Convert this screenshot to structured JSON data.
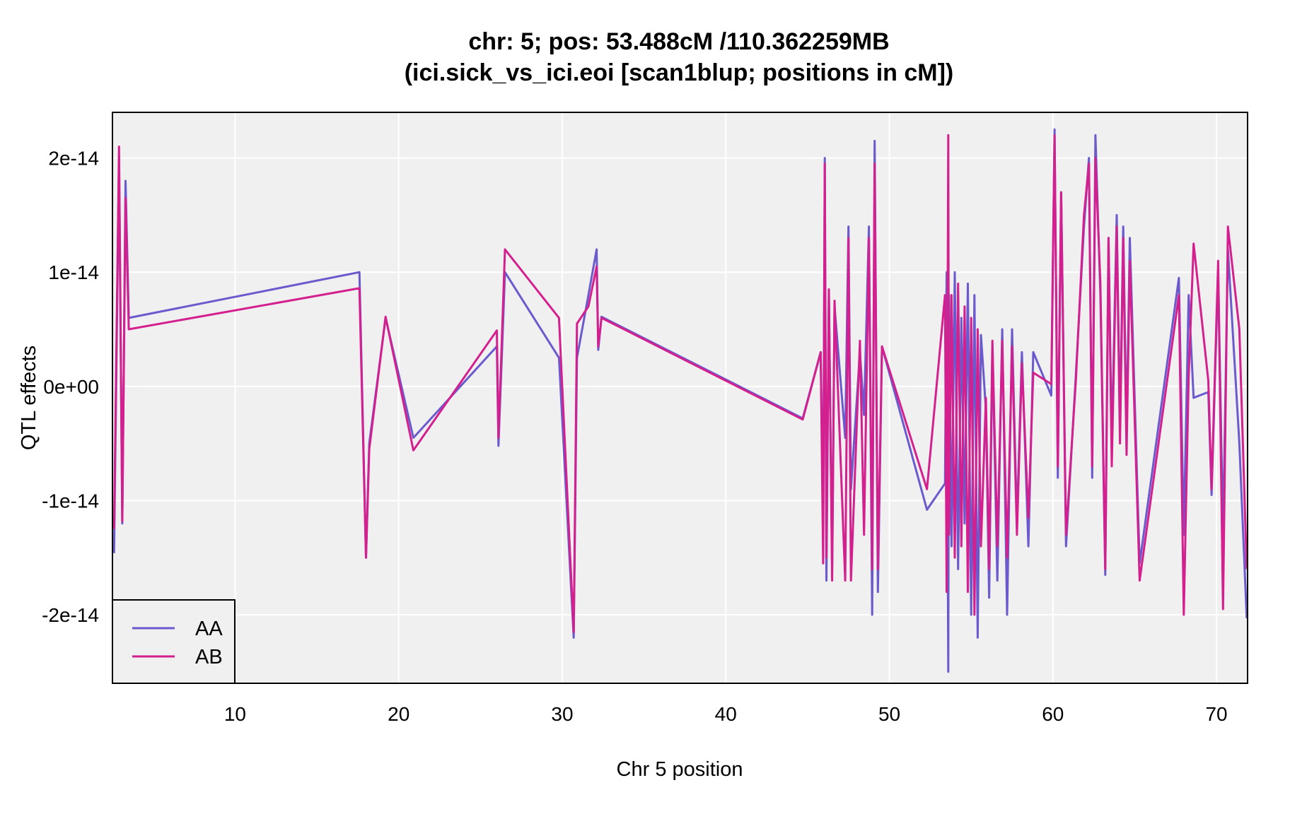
{
  "chart_data": {
    "type": "line",
    "title_line1": "chr: 5; pos: 53.488cM /110.362259MB",
    "title_line2": "(ici.sick_vs_ici.eoi [scan1blup; positions in cM])",
    "xlabel": "Chr 5 position",
    "ylabel": "QTL effects",
    "xlim": [
      2.5,
      71.9
    ],
    "ylim": [
      -2.6e-14,
      2.4e-14
    ],
    "x_ticks": [
      10,
      20,
      30,
      40,
      50,
      60,
      70
    ],
    "x_tick_labels": [
      "10",
      "20",
      "30",
      "40",
      "50",
      "60",
      "70"
    ],
    "y_ticks": [
      2e-14,
      1e-14,
      0,
      -1e-14,
      -2e-14
    ],
    "y_tick_labels": [
      "2e-14",
      "1e-14",
      "0e+00",
      "-1e-14",
      "-2e-14"
    ],
    "grid": true,
    "legend_position": "bottom-left",
    "colors": {
      "AA": "#6a5acd",
      "AB": "#d4208e",
      "panel": "#f0f0f0",
      "grid": "#ffffff"
    },
    "x": [
      2.6,
      2.9,
      3.1,
      3.3,
      3.5,
      17.6,
      18.0,
      18.2,
      19.2,
      20.9,
      26.0,
      26.1,
      26.5,
      29.8,
      30.7,
      30.9,
      31.6,
      32.1,
      32.2,
      32.4,
      44.7,
      45.8,
      45.95,
      46.05,
      46.15,
      46.3,
      46.5,
      46.65,
      47.3,
      47.5,
      47.65,
      48.2,
      48.45,
      48.75,
      48.95,
      49.1,
      49.3,
      49.55,
      52.3,
      53.4,
      53.5,
      53.6,
      53.65,
      53.8,
      54.0,
      54.2,
      54.4,
      54.6,
      54.8,
      55.0,
      55.2,
      55.4,
      55.6,
      55.9,
      56.1,
      56.3,
      56.6,
      56.9,
      57.2,
      57.5,
      57.8,
      58.1,
      58.5,
      58.8,
      59.9,
      60.1,
      60.3,
      60.5,
      60.8,
      61.4,
      61.9,
      62.2,
      62.4,
      62.6,
      62.9,
      63.2,
      63.4,
      63.6,
      63.9,
      64.1,
      64.3,
      64.5,
      64.7,
      65.3,
      67.7,
      68.0,
      68.3,
      68.6,
      69.5,
      69.7,
      70.1,
      70.4,
      70.7,
      71.4,
      71.85
    ],
    "series": [
      {
        "name": "AA",
        "values": [
          -1.46e-14,
          2e-14,
          -1.2e-14,
          1.8e-14,
          6e-15,
          1e-14,
          -1.5e-14,
          -5e-15,
          6e-15,
          -4.5e-15,
          3.5e-15,
          -5.2e-15,
          1e-14,
          2.5e-15,
          -2.2e-14,
          2.5e-15,
          8e-15,
          1.2e-14,
          3.2e-15,
          6.1e-15,
          -2.8e-15,
          3e-15,
          -1.2e-14,
          2e-14,
          -1.7e-14,
          8e-15,
          -1.6e-14,
          7e-15,
          -4.5e-15,
          1.4e-14,
          -9e-15,
          3e-15,
          -2.5e-15,
          1.4e-14,
          -2e-14,
          2.15e-14,
          -1.8e-14,
          3.5e-15,
          -1.08e-14,
          -8.5e-15,
          1e-14,
          -2.5e-14,
          8e-15,
          -1.4e-14,
          1e-14,
          -1.6e-14,
          6e-15,
          -1.2e-14,
          9e-15,
          -2e-14,
          8e-15,
          -2.2e-14,
          4.5e-15,
          -2e-15,
          -1.85e-14,
          3.5e-15,
          -1.7e-14,
          5e-15,
          -2e-14,
          5e-15,
          -1.2e-14,
          3e-15,
          -1.4e-14,
          3e-15,
          -8e-16,
          2.25e-14,
          -8e-15,
          1.7e-14,
          -1.4e-14,
          1e-15,
          1.4e-14,
          2e-14,
          -8e-15,
          2.2e-14,
          8e-15,
          -1.65e-14,
          1.3e-14,
          -5e-15,
          1.5e-14,
          -3.5e-15,
          1.4e-14,
          -4e-15,
          1.3e-14,
          -1.55e-14,
          9.5e-15,
          -1.3e-14,
          8e-15,
          -1e-15,
          -5e-16,
          -9.5e-15,
          1e-14,
          -1.3e-14,
          1.2e-14,
          -5e-15,
          -2.03e-14
        ]
      },
      {
        "name": "AB",
        "values": [
          -1.25e-14,
          2.1e-14,
          -1.18e-14,
          1.65e-14,
          5e-15,
          8.6e-15,
          -1.5e-14,
          -5.5e-15,
          6.1e-15,
          -5.6e-15,
          4.9e-15,
          -4.5e-15,
          1.2e-14,
          6e-15,
          -2.15e-14,
          5.5e-15,
          7e-15,
          1.05e-14,
          3.5e-15,
          6e-15,
          -2.9e-15,
          3e-15,
          -1.55e-14,
          1.95e-14,
          -1.5e-14,
          8.5e-15,
          -1.7e-14,
          7.5e-15,
          -1.7e-14,
          1.3e-14,
          -1.7e-14,
          4e-15,
          -1.3e-14,
          1.3e-14,
          -1.6e-14,
          1.95e-14,
          -1.6e-14,
          3.5e-15,
          -9e-15,
          8e-15,
          -1.8e-14,
          2.2e-14,
          -1.3e-14,
          8e-15,
          -1.5e-14,
          9e-15,
          -1.4e-14,
          7e-15,
          -1.8e-14,
          6e-15,
          -2e-14,
          5e-15,
          -1.4e-14,
          -1e-15,
          -1.6e-14,
          4e-15,
          -1.4e-14,
          4e-15,
          -1.5e-14,
          3.5e-15,
          -1.3e-14,
          2e-15,
          -1.15e-14,
          1.2e-15,
          2e-16,
          2.2e-14,
          -7e-15,
          1.7e-14,
          -1.3e-14,
          5e-16,
          1.5e-14,
          1.95e-14,
          -7e-15,
          2e-14,
          9e-15,
          -1.6e-14,
          1.3e-14,
          -7e-15,
          1.4e-14,
          -5e-15,
          1.3e-14,
          -6e-15,
          1.1e-14,
          -1.7e-14,
          8e-15,
          -2e-14,
          8e-16,
          1.25e-14,
          5e-16,
          -9e-15,
          1.1e-14,
          -1.95e-14,
          1.4e-14,
          5e-15,
          -1.6e-14
        ]
      }
    ]
  }
}
